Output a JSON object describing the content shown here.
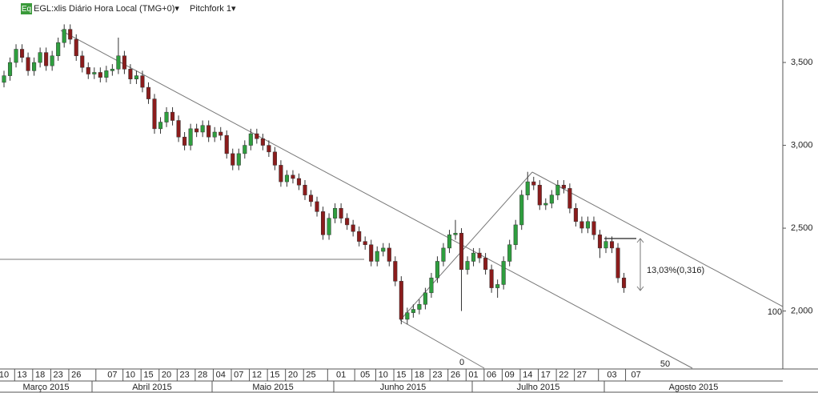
{
  "chart_data": {
    "type": "candlestick",
    "badge": "Eq",
    "instrument": "EGL:xlis Diário Hora Local (TMG+0)▾",
    "study": "Pitchfork 1▾",
    "pitchfork_levels": [
      "0",
      "50",
      "100"
    ],
    "measure_label": "13,03%(0,316)",
    "up_color": "#2e9e3e",
    "down_color": "#8b1c1c",
    "categories": [
      "10",
      null,
      null,
      "13",
      null,
      null,
      "18",
      null,
      null,
      "23",
      null,
      null,
      "26",
      null,
      null,
      null,
      null,
      null,
      "07",
      null,
      null,
      "10",
      null,
      null,
      "15",
      null,
      null,
      "20",
      null,
      null,
      "23",
      null,
      null,
      "28",
      null,
      null,
      "04",
      null,
      null,
      "07",
      null,
      null,
      "12",
      null,
      null,
      "15",
      null,
      null,
      "20",
      null,
      null,
      "25",
      null,
      null,
      null,
      null,
      "01",
      null,
      null,
      null,
      "05",
      null,
      null,
      "10",
      null,
      null,
      "15",
      null,
      null,
      "18",
      null,
      null,
      "23",
      null,
      null,
      "26",
      null,
      null,
      "01",
      null,
      null,
      "06",
      null,
      null,
      "09",
      null,
      null,
      "14",
      null,
      null,
      "17",
      null,
      null,
      "22",
      null,
      null,
      "27",
      null,
      null,
      null,
      null,
      "03",
      null,
      null,
      null,
      "07"
    ],
    "months": [
      "Março 2015",
      "Abril 2015",
      "Maio 2015",
      "Junho 2015",
      "Julho 2015",
      "Agosto 2015"
    ],
    "open": [
      3380,
      3420,
      3500,
      3580,
      3530,
      3450,
      3500,
      3560,
      3480,
      3540,
      3620,
      3700,
      3640,
      3540,
      3470,
      3430,
      3440,
      3410,
      3450,
      3460,
      3540,
      3460,
      3400,
      3420,
      3350,
      3280,
      3100,
      3140,
      3200,
      3150,
      3050,
      3000,
      3100,
      3080,
      3120,
      3050,
      3080,
      3060,
      2950,
      2880,
      2950,
      3000,
      3070,
      3040,
      3000,
      2960,
      2880,
      2780,
      2820,
      2800,
      2760,
      2700,
      2660,
      2600,
      2460,
      2560,
      2620,
      2560,
      2520,
      2480,
      2420,
      2400,
      2300,
      2360,
      2380,
      2300,
      2180,
      1950,
      1990,
      2010,
      2040,
      2110,
      2200,
      2300,
      2380,
      2460,
      2470,
      2250,
      2300,
      2350,
      2320,
      2250,
      2140,
      2160,
      2300,
      2400,
      2520,
      2700,
      2780,
      2760,
      2640,
      2650,
      2700,
      2760,
      2740,
      2620,
      2540,
      2500,
      2540,
      2460,
      2380,
      2420,
      2380,
      2200,
      null,
      null
    ],
    "high": [
      3450,
      3530,
      3610,
      3610,
      3560,
      3530,
      3590,
      3590,
      3570,
      3650,
      3730,
      3730,
      3670,
      3570,
      3500,
      3470,
      3470,
      3480,
      3490,
      3650,
      3570,
      3490,
      3450,
      3450,
      3380,
      3310,
      3170,
      3230,
      3230,
      3180,
      3080,
      3130,
      3130,
      3150,
      3150,
      3110,
      3110,
      3090,
      2980,
      2980,
      3030,
      3100,
      3100,
      3070,
      3030,
      2990,
      2910,
      2850,
      2850,
      2830,
      2790,
      2730,
      2690,
      2630,
      2590,
      2650,
      2650,
      2590,
      2550,
      2510,
      2450,
      2430,
      2390,
      2410,
      2410,
      2330,
      2210,
      2020,
      2040,
      2070,
      2140,
      2230,
      2330,
      2410,
      2490,
      2550,
      2500,
      2330,
      2380,
      2380,
      2350,
      2280,
      2190,
      2330,
      2430,
      2550,
      2730,
      2840,
      2810,
      2790,
      2680,
      2730,
      2790,
      2790,
      2770,
      2650,
      2570,
      2570,
      2570,
      2490,
      2450,
      2450,
      2410,
      2230,
      null,
      null
    ],
    "low": [
      3350,
      3390,
      3470,
      3500,
      3420,
      3420,
      3470,
      3450,
      3450,
      3510,
      3590,
      3610,
      3510,
      3440,
      3400,
      3400,
      3380,
      3380,
      3420,
      3430,
      3430,
      3370,
      3370,
      3320,
      3250,
      3070,
      3070,
      3110,
      3120,
      3020,
      2970,
      2970,
      3050,
      3050,
      3020,
      3020,
      3030,
      2920,
      2850,
      2850,
      2920,
      2970,
      3010,
      2970,
      2930,
      2850,
      2750,
      2750,
      2770,
      2730,
      2670,
      2630,
      2570,
      2430,
      2430,
      2530,
      2530,
      2490,
      2450,
      2390,
      2370,
      2270,
      2270,
      2330,
      2270,
      2150,
      1920,
      1920,
      1960,
      1980,
      2010,
      2080,
      2170,
      2270,
      2350,
      2430,
      2000,
      2220,
      2270,
      2290,
      2220,
      2110,
      2080,
      2130,
      2270,
      2370,
      2490,
      2670,
      2730,
      2610,
      2610,
      2620,
      2670,
      2710,
      2590,
      2510,
      2470,
      2470,
      2430,
      2320,
      2350,
      2350,
      2170,
      2110,
      null,
      null
    ],
    "close": [
      3420,
      3500,
      3580,
      3530,
      3450,
      3500,
      3560,
      3480,
      3540,
      3620,
      3700,
      3640,
      3540,
      3470,
      3430,
      3440,
      3410,
      3450,
      3460,
      3540,
      3460,
      3400,
      3420,
      3350,
      3280,
      3100,
      3140,
      3200,
      3150,
      3050,
      3000,
      3100,
      3080,
      3120,
      3050,
      3080,
      3060,
      2950,
      2880,
      2950,
      3000,
      3070,
      3040,
      3000,
      2960,
      2880,
      2780,
      2820,
      2800,
      2760,
      2700,
      2660,
      2600,
      2460,
      2560,
      2620,
      2560,
      2520,
      2480,
      2420,
      2400,
      2300,
      2360,
      2380,
      2300,
      2180,
      1950,
      1990,
      2010,
      2040,
      2110,
      2200,
      2300,
      2380,
      2460,
      2470,
      2250,
      2300,
      2350,
      2320,
      2250,
      2140,
      2160,
      2300,
      2400,
      2520,
      2700,
      2780,
      2760,
      2640,
      2650,
      2700,
      2760,
      2740,
      2620,
      2540,
      2500,
      2540,
      2460,
      2380,
      2420,
      2380,
      2200,
      2140,
      null,
      null
    ],
    "ylim": [
      1655,
      3877
    ],
    "yticks": [
      {
        "value": 2000,
        "label": "2,000"
      },
      {
        "value": 2500,
        "label": "2,500"
      },
      {
        "value": 3000,
        "label": "3,000"
      },
      {
        "value": 3500,
        "label": "3,500"
      }
    ]
  }
}
